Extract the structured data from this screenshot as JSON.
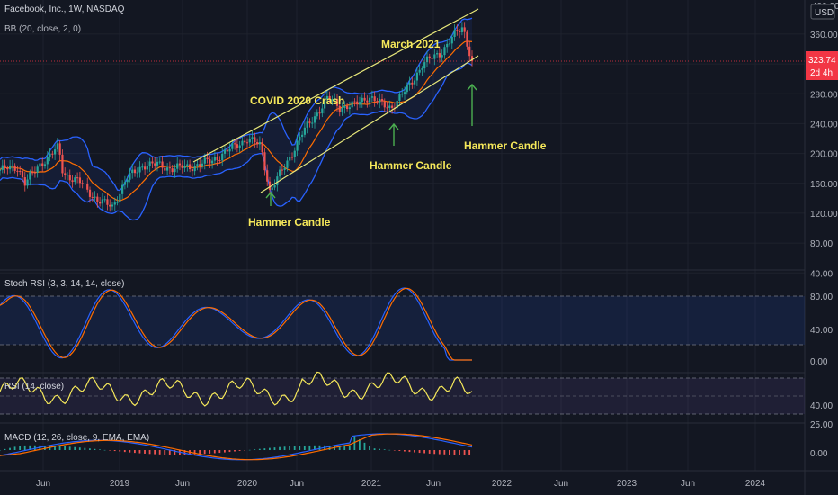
{
  "header": {
    "symbol_title": "Facebook, Inc., 1W, NASDAQ",
    "indicator_bb": "BB (20, close, 2, 0)",
    "currency": "USD",
    "top_price_label": "400.00"
  },
  "price_badge": {
    "price": "323.74",
    "countdown": "2d 4h",
    "color": "#f23645"
  },
  "annotations": {
    "covid_crash": "COVID 2020 Crash",
    "march_2021": "March 2021",
    "hammer_1": "Hammer Candle",
    "hammer_2": "Hammer Candle",
    "hammer_3": "Hammer Candle"
  },
  "colors": {
    "background": "#131722",
    "up": "#26a69a",
    "down": "#ef5350",
    "bb_band": "#2962ff",
    "bb_basis": "#ff6d00",
    "channel": "#e8e87a",
    "arrow": "#4caf50",
    "annotation": "#f5e85a",
    "rsi": "#f5e85a",
    "stoch_k": "#2962ff",
    "stoch_d": "#ff6d00"
  },
  "panels": {
    "stoch_label": "Stoch RSI (3, 3, 14, 14, close)",
    "rsi_label": "RSI (14, close)",
    "macd_label": "MACD (12, 26, close, 9, EMA, EMA)"
  },
  "chart_data": {
    "type": "candlestick",
    "price_axis_ticks": [
      "360.00",
      "320.00",
      "280.00",
      "240.00",
      "200.00",
      "160.00",
      "120.00",
      "80.00",
      "40.00"
    ],
    "price_axis_values": [
      360,
      320,
      280,
      240,
      200,
      160,
      120,
      80,
      40
    ],
    "ylim": [
      16,
      410
    ],
    "time_axis_labels": [
      "Jun",
      "2019",
      "Jun",
      "2020",
      "Jun",
      "2021",
      "Jun",
      "2022",
      "Jun",
      "2023",
      "Jun",
      "2024"
    ],
    "time_axis_dates": [
      "2018-06",
      "2019-01",
      "2019-06",
      "2020-01",
      "2020-06",
      "2021-01",
      "2021-06",
      "2022-01",
      "2022-06",
      "2023-01",
      "2023-06",
      "2024-01"
    ],
    "weekly_close_approx": [
      [
        "2017-12",
        178
      ],
      [
        "2018-02",
        182
      ],
      [
        "2018-03",
        160
      ],
      [
        "2018-05",
        186
      ],
      [
        "2018-07",
        208
      ],
      [
        "2018-07",
        174
      ],
      [
        "2018-09",
        162
      ],
      [
        "2018-11",
        138
      ],
      [
        "2018-12",
        128
      ],
      [
        "2019-02",
        165
      ],
      [
        "2019-04",
        185
      ],
      [
        "2019-05",
        185
      ],
      [
        "2019-06",
        180
      ],
      [
        "2019-08",
        183
      ],
      [
        "2019-10",
        190
      ],
      [
        "2019-12",
        205
      ],
      [
        "2020-01",
        220
      ],
      [
        "2020-02",
        210
      ],
      [
        "2020-03",
        150
      ],
      [
        "2020-04",
        185
      ],
      [
        "2020-06",
        225
      ],
      [
        "2020-08",
        275
      ],
      [
        "2020-09",
        262
      ],
      [
        "2020-10",
        265
      ],
      [
        "2020-11",
        277
      ],
      [
        "2021-01",
        265
      ],
      [
        "2021-02",
        262
      ],
      [
        "2021-03",
        290
      ],
      [
        "2021-04",
        320
      ],
      [
        "2021-06",
        335
      ],
      [
        "2021-07",
        358
      ],
      [
        "2021-08",
        370
      ],
      [
        "2021-09",
        355
      ],
      [
        "2021-10",
        323.74
      ]
    ],
    "stoch_rsi_ticks": [
      "80.00",
      "40.00",
      "0.00"
    ],
    "rsi_ticks": [
      "40.00"
    ],
    "macd_ticks": [
      "25.00",
      "0.00"
    ]
  }
}
